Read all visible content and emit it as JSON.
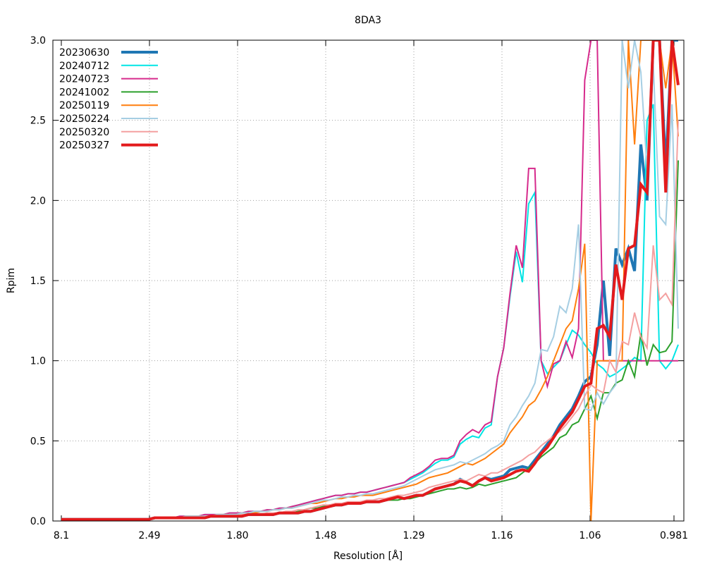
{
  "chart_data": {
    "type": "line",
    "title": "8DA3",
    "xlabel": "Resolution [Å]",
    "ylabel": "Rpim",
    "x_axis_scale": "1/d^2 (quadratic in reciprocal resolution)",
    "x_tick_labels": [
      "8.1",
      "2.49",
      "1.80",
      "1.48",
      "1.29",
      "1.16",
      "1.06",
      "0.981"
    ],
    "ylim": [
      0.0,
      3.0
    ],
    "y_tick_labels": [
      "0.0",
      "0.5",
      "1.0",
      "1.5",
      "2.0",
      "2.5",
      "3.0"
    ],
    "y_ticks": [
      0.0,
      0.5,
      1.0,
      1.5,
      2.0,
      2.5,
      3.0
    ],
    "grid": true,
    "legend_position": "top-left",
    "x_bins": 100,
    "series": [
      {
        "name": "20230630",
        "color": "#1f77b4",
        "width": 4,
        "values": [
          0.01,
          0.01,
          0.01,
          0.01,
          0.01,
          0.01,
          0.01,
          0.01,
          0.01,
          0.01,
          0.01,
          0.01,
          0.01,
          0.01,
          0.01,
          0.02,
          0.02,
          0.02,
          0.02,
          0.02,
          0.02,
          0.02,
          0.02,
          0.02,
          0.03,
          0.03,
          0.03,
          0.03,
          0.03,
          0.03,
          0.04,
          0.04,
          0.04,
          0.04,
          0.04,
          0.05,
          0.05,
          0.05,
          0.05,
          0.06,
          0.06,
          0.07,
          0.08,
          0.09,
          0.1,
          0.1,
          0.11,
          0.11,
          0.11,
          0.12,
          0.12,
          0.12,
          0.13,
          0.14,
          0.15,
          0.14,
          0.15,
          0.16,
          0.16,
          0.18,
          0.2,
          0.21,
          0.22,
          0.23,
          0.26,
          0.24,
          0.22,
          0.25,
          0.27,
          0.26,
          0.27,
          0.28,
          0.32,
          0.33,
          0.34,
          0.33,
          0.38,
          0.43,
          0.48,
          0.53,
          0.6,
          0.65,
          0.7,
          0.78,
          0.87,
          0.9,
          1.1,
          1.5,
          1.03,
          1.7,
          1.6,
          1.7,
          1.56,
          2.35,
          2.0,
          3.0,
          3.0,
          2.2,
          3.0,
          3.0
        ]
      },
      {
        "name": "20240712",
        "color": "#00e5e5",
        "width": 2,
        "values": [
          0.01,
          0.01,
          0.01,
          0.01,
          0.01,
          0.01,
          0.01,
          0.01,
          0.01,
          0.01,
          0.01,
          0.01,
          0.01,
          0.01,
          0.01,
          0.02,
          0.02,
          0.02,
          0.02,
          0.03,
          0.03,
          0.03,
          0.03,
          0.04,
          0.04,
          0.04,
          0.04,
          0.05,
          0.05,
          0.05,
          0.06,
          0.06,
          0.06,
          0.07,
          0.07,
          0.08,
          0.08,
          0.09,
          0.1,
          0.11,
          0.12,
          0.13,
          0.14,
          0.15,
          0.16,
          0.16,
          0.17,
          0.17,
          0.18,
          0.18,
          0.19,
          0.2,
          0.21,
          0.22,
          0.23,
          0.24,
          0.26,
          0.28,
          0.3,
          0.33,
          0.36,
          0.38,
          0.38,
          0.4,
          0.48,
          0.51,
          0.53,
          0.52,
          0.58,
          0.6,
          0.9,
          1.08,
          1.4,
          1.68,
          1.49,
          1.98,
          2.05,
          1.0,
          0.92,
          0.96,
          1.0,
          1.1,
          1.19,
          1.16,
          1.1,
          1.05,
          0.98,
          0.95,
          0.9,
          0.92,
          0.95,
          0.98,
          1.02,
          1.0,
          2.5,
          2.6,
          1.0,
          0.95,
          1.0,
          1.1
        ]
      },
      {
        "name": "20240723",
        "color": "#d62a8c",
        "width": 2,
        "values": [
          0.01,
          0.01,
          0.01,
          0.01,
          0.01,
          0.01,
          0.01,
          0.01,
          0.01,
          0.01,
          0.01,
          0.01,
          0.01,
          0.01,
          0.01,
          0.02,
          0.02,
          0.02,
          0.02,
          0.03,
          0.03,
          0.03,
          0.03,
          0.04,
          0.04,
          0.04,
          0.04,
          0.05,
          0.05,
          0.05,
          0.06,
          0.06,
          0.06,
          0.07,
          0.07,
          0.08,
          0.08,
          0.09,
          0.1,
          0.11,
          0.12,
          0.13,
          0.14,
          0.15,
          0.16,
          0.16,
          0.17,
          0.17,
          0.18,
          0.18,
          0.19,
          0.2,
          0.21,
          0.22,
          0.23,
          0.24,
          0.27,
          0.29,
          0.31,
          0.34,
          0.38,
          0.39,
          0.39,
          0.41,
          0.5,
          0.54,
          0.57,
          0.55,
          0.6,
          0.62,
          0.9,
          1.08,
          1.42,
          1.72,
          1.58,
          2.2,
          2.2,
          1.0,
          0.84,
          0.98,
          1.0,
          1.12,
          1.02,
          1.2,
          2.75,
          3.0,
          3.0,
          1.0,
          1.0,
          1.0,
          1.0,
          1.0,
          1.0,
          1.0,
          1.0,
          1.0,
          1.0,
          1.0,
          1.0,
          1.0
        ]
      },
      {
        "name": "20241002",
        "color": "#2ca02c",
        "width": 2,
        "values": [
          0.01,
          0.01,
          0.01,
          0.01,
          0.01,
          0.01,
          0.01,
          0.01,
          0.01,
          0.01,
          0.01,
          0.01,
          0.01,
          0.01,
          0.01,
          0.02,
          0.02,
          0.02,
          0.02,
          0.02,
          0.02,
          0.02,
          0.02,
          0.02,
          0.03,
          0.03,
          0.03,
          0.03,
          0.03,
          0.03,
          0.04,
          0.04,
          0.04,
          0.04,
          0.04,
          0.05,
          0.05,
          0.05,
          0.06,
          0.07,
          0.08,
          0.08,
          0.09,
          0.1,
          0.1,
          0.1,
          0.11,
          0.11,
          0.12,
          0.12,
          0.12,
          0.12,
          0.13,
          0.13,
          0.13,
          0.14,
          0.14,
          0.15,
          0.16,
          0.17,
          0.18,
          0.19,
          0.2,
          0.2,
          0.21,
          0.2,
          0.21,
          0.23,
          0.22,
          0.23,
          0.24,
          0.25,
          0.26,
          0.27,
          0.3,
          0.33,
          0.36,
          0.4,
          0.43,
          0.46,
          0.52,
          0.54,
          0.6,
          0.62,
          0.7,
          0.78,
          0.64,
          0.8,
          0.8,
          0.86,
          0.88,
          1.0,
          0.9,
          1.17,
          0.97,
          1.1,
          1.05,
          1.06,
          1.12,
          2.25
        ]
      },
      {
        "name": "20250119",
        "color": "#ff7f0e",
        "width": 2,
        "values": [
          0.01,
          0.01,
          0.01,
          0.01,
          0.01,
          0.01,
          0.01,
          0.01,
          0.01,
          0.01,
          0.01,
          0.01,
          0.01,
          0.01,
          0.01,
          0.02,
          0.02,
          0.02,
          0.02,
          0.02,
          0.03,
          0.03,
          0.03,
          0.03,
          0.03,
          0.04,
          0.04,
          0.04,
          0.04,
          0.05,
          0.05,
          0.05,
          0.06,
          0.06,
          0.07,
          0.07,
          0.08,
          0.08,
          0.09,
          0.1,
          0.11,
          0.11,
          0.12,
          0.13,
          0.14,
          0.14,
          0.15,
          0.15,
          0.16,
          0.16,
          0.16,
          0.17,
          0.18,
          0.19,
          0.2,
          0.21,
          0.22,
          0.23,
          0.25,
          0.27,
          0.28,
          0.29,
          0.3,
          0.32,
          0.34,
          0.36,
          0.35,
          0.37,
          0.39,
          0.42,
          0.45,
          0.48,
          0.55,
          0.6,
          0.65,
          0.72,
          0.75,
          0.82,
          0.9,
          1.0,
          1.1,
          1.2,
          1.25,
          1.45,
          1.73,
          0.0,
          1.0,
          1.0,
          1.0,
          1.0,
          1.0,
          3.0,
          2.35,
          3.0,
          3.0,
          3.0,
          3.0,
          2.7,
          3.0,
          2.4
        ]
      },
      {
        "name": "20250224",
        "color": "#a6cee3",
        "width": 2,
        "values": [
          0.01,
          0.01,
          0.01,
          0.01,
          0.01,
          0.01,
          0.01,
          0.01,
          0.01,
          0.01,
          0.01,
          0.01,
          0.01,
          0.01,
          0.01,
          0.02,
          0.02,
          0.02,
          0.02,
          0.02,
          0.03,
          0.03,
          0.03,
          0.03,
          0.03,
          0.04,
          0.04,
          0.04,
          0.04,
          0.05,
          0.05,
          0.06,
          0.06,
          0.06,
          0.07,
          0.07,
          0.08,
          0.08,
          0.09,
          0.1,
          0.11,
          0.12,
          0.13,
          0.13,
          0.14,
          0.15,
          0.15,
          0.16,
          0.16,
          0.17,
          0.17,
          0.18,
          0.19,
          0.2,
          0.21,
          0.22,
          0.24,
          0.26,
          0.28,
          0.3,
          0.32,
          0.33,
          0.34,
          0.35,
          0.37,
          0.36,
          0.38,
          0.4,
          0.42,
          0.45,
          0.47,
          0.5,
          0.6,
          0.65,
          0.72,
          0.78,
          0.86,
          1.07,
          1.06,
          1.15,
          1.34,
          1.3,
          1.45,
          1.85,
          0.7,
          0.69,
          0.8,
          0.73,
          0.8,
          0.85,
          3.0,
          2.7,
          3.0,
          2.8,
          2.2,
          2.85,
          1.9,
          1.85,
          2.6,
          1.2
        ]
      },
      {
        "name": "20250320",
        "color": "#f4a0a0",
        "width": 2,
        "values": [
          0.01,
          0.01,
          0.01,
          0.01,
          0.01,
          0.01,
          0.01,
          0.01,
          0.01,
          0.01,
          0.01,
          0.01,
          0.01,
          0.01,
          0.01,
          0.02,
          0.02,
          0.02,
          0.02,
          0.02,
          0.02,
          0.02,
          0.02,
          0.02,
          0.03,
          0.03,
          0.03,
          0.03,
          0.03,
          0.04,
          0.04,
          0.04,
          0.04,
          0.05,
          0.05,
          0.05,
          0.06,
          0.06,
          0.07,
          0.07,
          0.08,
          0.09,
          0.1,
          0.1,
          0.11,
          0.11,
          0.12,
          0.12,
          0.12,
          0.13,
          0.13,
          0.14,
          0.14,
          0.15,
          0.16,
          0.16,
          0.17,
          0.18,
          0.19,
          0.21,
          0.22,
          0.23,
          0.24,
          0.25,
          0.26,
          0.25,
          0.27,
          0.29,
          0.28,
          0.3,
          0.3,
          0.32,
          0.34,
          0.36,
          0.38,
          0.41,
          0.43,
          0.47,
          0.5,
          0.53,
          0.56,
          0.6,
          0.65,
          0.7,
          0.78,
          0.85,
          0.82,
          0.8,
          1.0,
          0.93,
          1.12,
          1.1,
          1.3,
          1.15,
          1.08,
          1.72,
          1.38,
          1.42,
          1.35,
          2.5
        ]
      },
      {
        "name": "20250327",
        "color": "#e31a1c",
        "width": 4,
        "values": [
          0.01,
          0.01,
          0.01,
          0.01,
          0.01,
          0.01,
          0.01,
          0.01,
          0.01,
          0.01,
          0.01,
          0.01,
          0.01,
          0.01,
          0.01,
          0.02,
          0.02,
          0.02,
          0.02,
          0.02,
          0.02,
          0.02,
          0.02,
          0.02,
          0.03,
          0.03,
          0.03,
          0.03,
          0.03,
          0.03,
          0.04,
          0.04,
          0.04,
          0.04,
          0.04,
          0.05,
          0.05,
          0.05,
          0.05,
          0.06,
          0.06,
          0.07,
          0.08,
          0.09,
          0.1,
          0.1,
          0.11,
          0.11,
          0.11,
          0.12,
          0.12,
          0.12,
          0.13,
          0.14,
          0.15,
          0.14,
          0.15,
          0.16,
          0.16,
          0.18,
          0.2,
          0.21,
          0.22,
          0.23,
          0.25,
          0.24,
          0.22,
          0.25,
          0.27,
          0.25,
          0.26,
          0.27,
          0.29,
          0.31,
          0.32,
          0.31,
          0.36,
          0.42,
          0.46,
          0.52,
          0.58,
          0.63,
          0.68,
          0.76,
          0.84,
          0.86,
          1.2,
          1.22,
          1.15,
          1.6,
          1.38,
          1.7,
          1.72,
          2.1,
          2.05,
          3.0,
          3.0,
          2.05,
          3.0,
          2.72
        ]
      }
    ]
  }
}
